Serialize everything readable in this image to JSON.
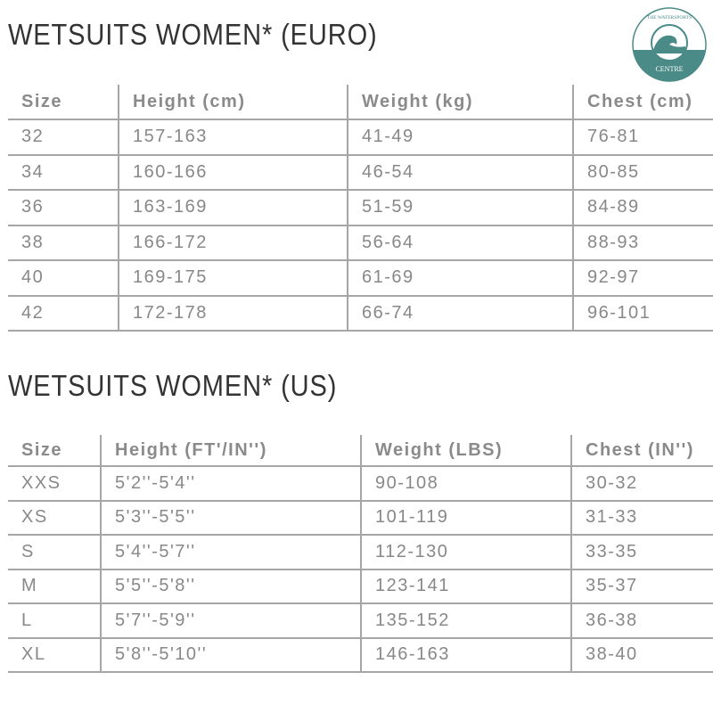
{
  "euro": {
    "title": "WETSUITS WOMEN* (EURO)",
    "headers": [
      "Size",
      "Height (cm)",
      "Weight (kg)",
      "Chest (cm)"
    ],
    "rows": [
      [
        "32",
        "157-163",
        "41-49",
        "76-81"
      ],
      [
        "34",
        "160-166",
        "46-54",
        "80-85"
      ],
      [
        "36",
        "163-169",
        "51-59",
        "84-89"
      ],
      [
        "38",
        "166-172",
        "56-64",
        "88-93"
      ],
      [
        "40",
        "169-175",
        "61-69",
        "92-97"
      ],
      [
        "42",
        "172-178",
        "66-74",
        "96-101"
      ]
    ]
  },
  "us": {
    "title": "WETSUITS WOMEN* (US)",
    "headers": [
      "Size",
      "Height (FT'/IN'')",
      "Weight (LBS)",
      "Chest (IN'')"
    ],
    "rows": [
      [
        "XXS",
        "5'2''-5'4''",
        "90-108",
        "30-32"
      ],
      [
        "XS",
        "5'3''-5'5''",
        "101-119",
        "31-33"
      ],
      [
        "S",
        "5'4''-5'7''",
        "112-130",
        "33-35"
      ],
      [
        "M",
        "5'5''-5'8''",
        "123-141",
        "35-37"
      ],
      [
        "L",
        "5'7''-5'9''",
        "135-152",
        "36-38"
      ],
      [
        "XL",
        "5'8''-5'10''",
        "146-163",
        "38-40"
      ]
    ]
  },
  "logo": {
    "text_top": "THE WATERSPORTS",
    "text_bottom": "CENTRE",
    "color": "#4a8a87"
  }
}
